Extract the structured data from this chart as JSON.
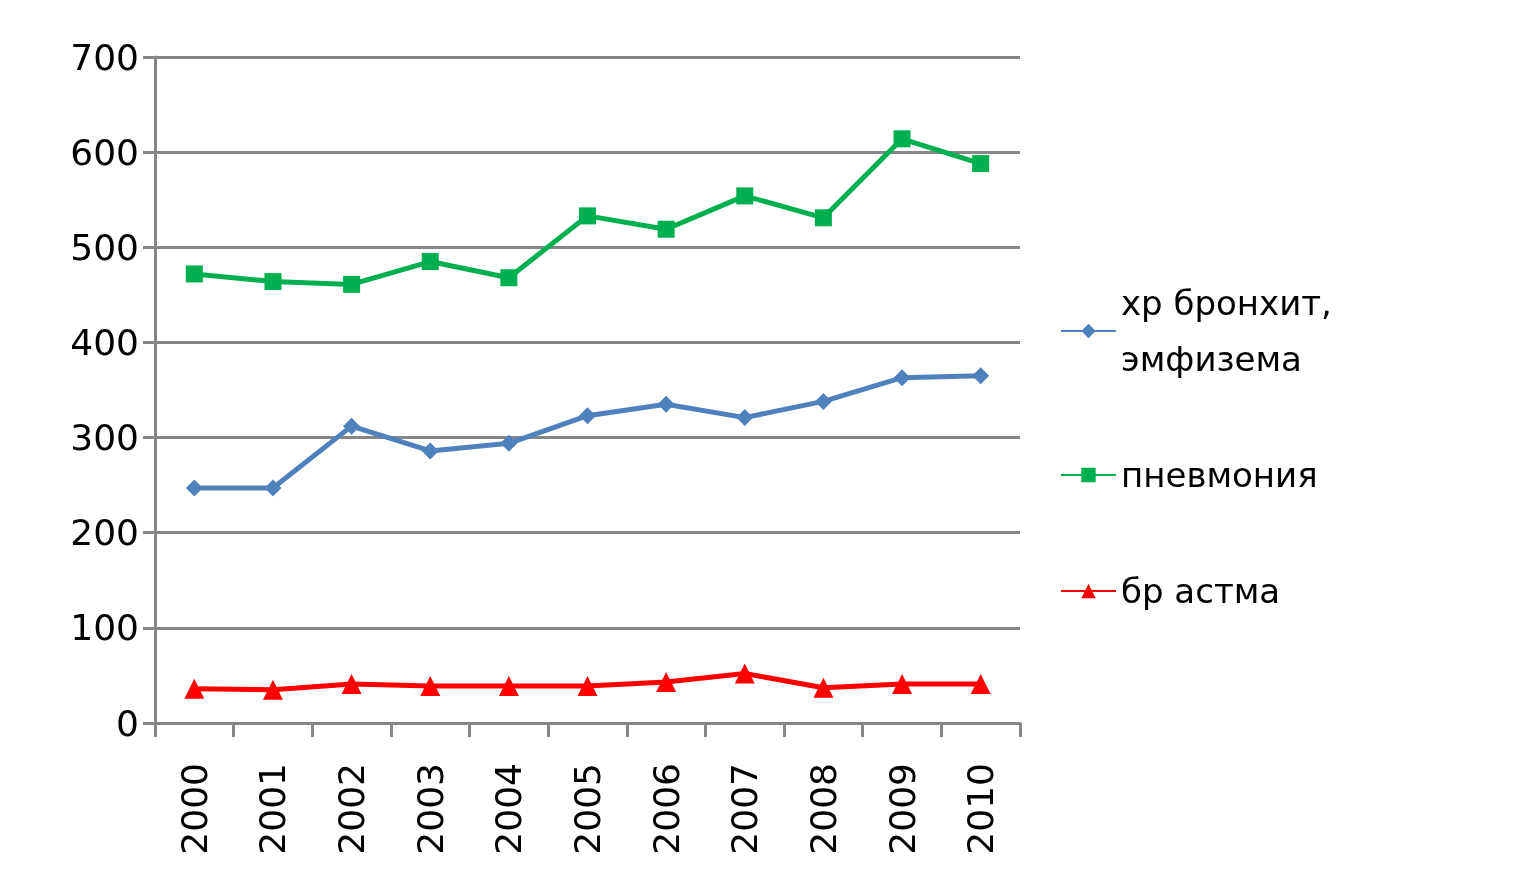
{
  "chart_data": {
    "type": "line",
    "categories": [
      "2000",
      "2001",
      "2002",
      "2003",
      "2004",
      "2005",
      "2006",
      "2007",
      "2008",
      "2009",
      "2010"
    ],
    "series": [
      {
        "name": "хр бронхит, эмфизема",
        "color": "#4f81bd",
        "marker": "diamond",
        "values": [
          247,
          247,
          312,
          286,
          294,
          323,
          335,
          321,
          338,
          363,
          365
        ]
      },
      {
        "name": "пневмония",
        "color": "#00b050",
        "marker": "square",
        "values": [
          472,
          464,
          461,
          485,
          468,
          533,
          519,
          554,
          531,
          614,
          588
        ]
      },
      {
        "name": "бр астма",
        "color": "#ff0000",
        "marker": "triangle",
        "values": [
          36,
          35,
          41,
          39,
          39,
          39,
          43,
          52,
          37,
          41,
          41
        ]
      }
    ],
    "ylim": [
      0,
      700
    ],
    "yticks": [
      0,
      100,
      200,
      300,
      400,
      500,
      600,
      700
    ],
    "grid": "y",
    "legend": "right"
  }
}
